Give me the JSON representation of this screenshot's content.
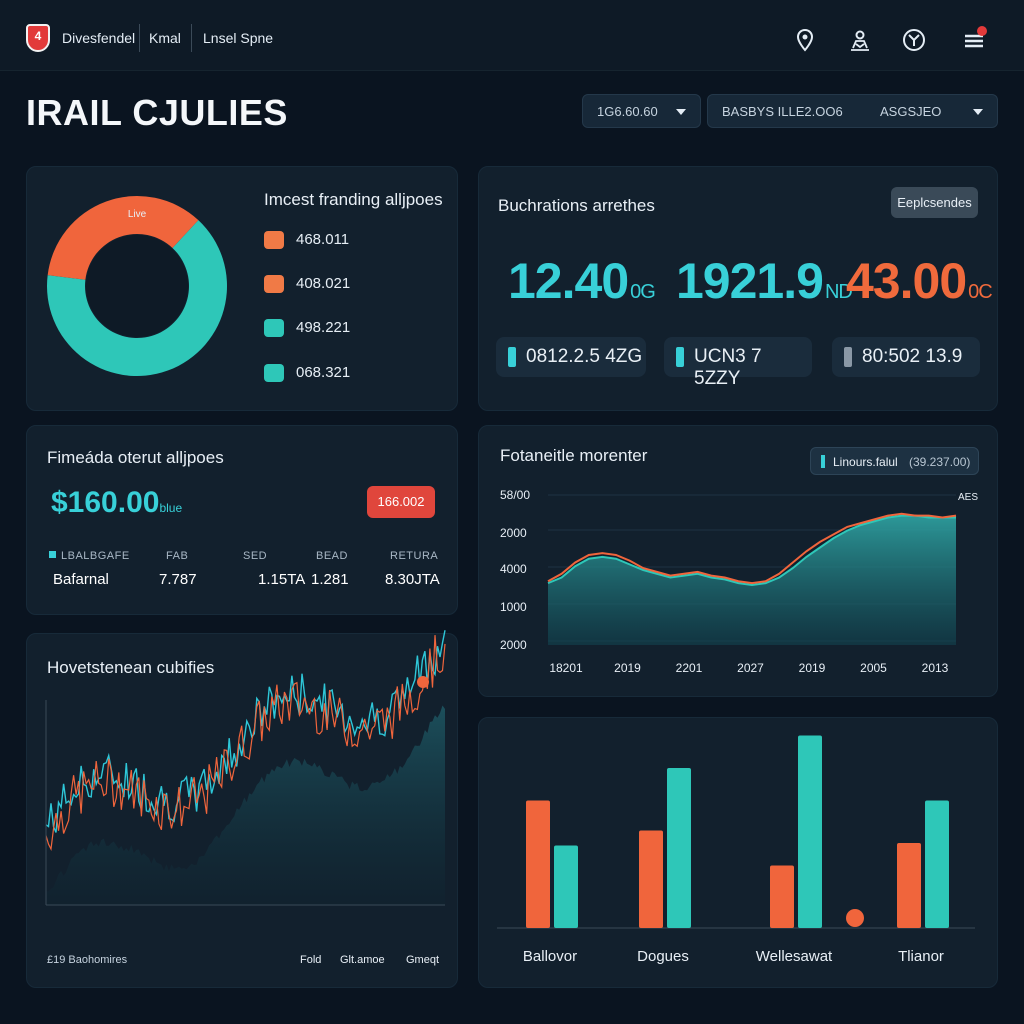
{
  "topbar": {
    "logo_glyph": "4",
    "nav": [
      "Divesfendel",
      "Kmal",
      "Lnsel Spne"
    ],
    "icons": [
      "location-icon",
      "user-network-icon",
      "compass-icon",
      "menu-icon"
    ]
  },
  "page_title": "IRAIL CJULIES",
  "filters": {
    "select1": "1G6.60.60",
    "select2_left": "BASBYS ILLE2.OO6",
    "select2_right": "ASGSJEO"
  },
  "donut_card": {
    "center_label": "Live",
    "title": "Imcest franding alljpoes",
    "items": [
      {
        "value": "468.011",
        "color": "#f07a46"
      },
      {
        "value": "408.021",
        "color": "#f07a46"
      },
      {
        "value": "498.221",
        "color": "#2ec7b8"
      },
      {
        "value": "068.321",
        "color": "#2ec7b8"
      }
    ]
  },
  "metrics_card": {
    "title": "Buchrations arrethes",
    "button": "Eeplcsendes",
    "big": [
      {
        "value": "12.40",
        "suffix": "0G",
        "color": "#38d0d8"
      },
      {
        "value": "1921.9",
        "suffix": "ND",
        "color": "#38d0d8"
      },
      {
        "value": "43.00",
        "suffix": "0C",
        "color": "#f06a3c"
      }
    ],
    "pills": [
      {
        "text": "0812.2.5 4ZG",
        "color": "#38d0d8"
      },
      {
        "text": "UCN3 7 5ZZY",
        "color": "#38d0d8"
      },
      {
        "text": "80:502 13.9",
        "color": "#8a98a6"
      }
    ]
  },
  "finance_card": {
    "title": "Fimeáda oterut alljpoes",
    "amount": "$160.00",
    "amount_suffix": "blue",
    "badge": "166.002",
    "headers": [
      "LBALBGAFE",
      "FAB",
      "SED",
      "BEAD",
      "RETURA"
    ],
    "values": [
      "Bafarnal",
      "7.787",
      "1.15TA",
      "1.281",
      "8.30JTA"
    ]
  },
  "line_card": {
    "title": "Fotaneitle morenter",
    "legend": "Linours.falul",
    "legend_value": "(39.237.00)",
    "series_label": "AES"
  },
  "noise_card": {
    "title": "Hovetstenean cubifies",
    "footer": [
      "£19 Baohomires",
      "Fold",
      "Glt.amoe",
      "Gmeqt"
    ]
  },
  "bar_card": {
    "categories": [
      "Ballovor",
      "Dogues",
      "Wellesawat",
      "Tlianor"
    ]
  },
  "chart_data": [
    {
      "type": "pie",
      "title": "Imcest franding alljpoes",
      "labels": [
        "",
        ""
      ],
      "values": [
        0.65,
        0.35
      ],
      "colors": [
        "#2ec7b8",
        "#f0653c"
      ]
    },
    {
      "type": "line",
      "title": "Fotaneitle morenter",
      "x_ticks": [
        "18201",
        "2019",
        "2201",
        "2027",
        "2019",
        "2005",
        "2013"
      ],
      "y_ticks": [
        "2000",
        "1000",
        "4000",
        "2000",
        "58/00"
      ],
      "x": [
        0,
        1,
        2,
        3,
        4,
        5,
        6,
        7,
        8,
        9,
        10,
        11,
        12,
        13,
        14,
        15,
        16,
        17,
        18,
        19,
        20,
        21,
        22,
        23,
        24,
        25,
        26,
        27,
        28,
        29,
        30
      ],
      "series": [
        {
          "name": "",
          "values": [
            3.3,
            3.6,
            4.2,
            4.6,
            4.7,
            4.6,
            4.3,
            4.0,
            3.8,
            3.6,
            3.7,
            3.8,
            3.6,
            3.5,
            3.3,
            3.2,
            3.3,
            3.6,
            4.1,
            4.7,
            5.2,
            5.7,
            6.1,
            6.4,
            6.6,
            6.8,
            6.9,
            6.9,
            6.8,
            6.8,
            6.8
          ],
          "color": "#2ec7b8"
        },
        {
          "name": "",
          "values": [
            3.4,
            3.8,
            4.4,
            4.8,
            4.9,
            4.8,
            4.5,
            4.1,
            3.9,
            3.7,
            3.8,
            3.9,
            3.7,
            3.6,
            3.4,
            3.3,
            3.4,
            3.8,
            4.4,
            5.0,
            5.5,
            5.9,
            6.3,
            6.5,
            6.7,
            6.9,
            7.0,
            6.9,
            6.9,
            6.8,
            6.9
          ],
          "color": "#f0653c"
        }
      ]
    },
    {
      "type": "bar",
      "categories": [
        "Ballovor",
        "Dogues",
        "Wellesawat",
        "Tlianor"
      ],
      "series": [
        {
          "name": "",
          "values": [
            0.51,
            0.39,
            0.25,
            0.34
          ],
          "color": "#f0653c"
        },
        {
          "name": "",
          "values": [
            0.33,
            0.64,
            0.77,
            0.51
          ],
          "color": "#2ec7b8"
        }
      ]
    }
  ]
}
